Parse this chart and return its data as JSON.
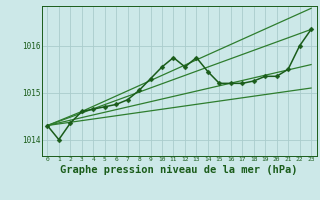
{
  "background_color": "#cce8e8",
  "grid_color": "#aacccc",
  "line_color_dark": "#1a5c1a",
  "line_color_med": "#2e7d2e",
  "xlabel": "Graphe pression niveau de la mer (hPa)",
  "xlabel_fontsize": 7.5,
  "xlim": [
    -0.5,
    23.5
  ],
  "ylim": [
    1013.65,
    1016.85
  ],
  "yticks": [
    1014,
    1015,
    1016
  ],
  "xticks": [
    0,
    1,
    2,
    3,
    4,
    5,
    6,
    7,
    8,
    9,
    10,
    11,
    12,
    13,
    14,
    15,
    16,
    17,
    18,
    19,
    20,
    21,
    22,
    23
  ],
  "series_main": {
    "x": [
      0,
      1,
      2,
      3,
      4,
      5,
      6,
      7,
      8,
      9,
      10,
      11,
      12,
      13,
      14,
      15,
      16,
      17,
      18,
      19,
      20,
      21,
      22,
      23
    ],
    "y": [
      1014.3,
      1014.0,
      1014.35,
      1014.6,
      1014.65,
      1014.7,
      1014.75,
      1014.85,
      1015.05,
      1015.3,
      1015.55,
      1015.75,
      1015.55,
      1015.75,
      1015.45,
      1015.2,
      1015.2,
      1015.2,
      1015.25,
      1015.35,
      1015.35,
      1015.5,
      1016.0,
      1016.35
    ],
    "color": "#1a5c1a",
    "linewidth": 1.1,
    "markersize": 2.5
  },
  "series_straight": [
    {
      "x": [
        0,
        3,
        23
      ],
      "y": [
        1014.3,
        1014.6,
        1016.8
      ],
      "color": "#2e7d2e",
      "linewidth": 0.9
    },
    {
      "x": [
        0,
        23
      ],
      "y": [
        1014.3,
        1016.35
      ],
      "color": "#2e7d2e",
      "linewidth": 0.9
    },
    {
      "x": [
        0,
        23
      ],
      "y": [
        1014.3,
        1015.6
      ],
      "color": "#2e7d2e",
      "linewidth": 0.9
    },
    {
      "x": [
        0,
        23
      ],
      "y": [
        1014.3,
        1015.1
      ],
      "color": "#2e7d2e",
      "linewidth": 0.9
    }
  ]
}
